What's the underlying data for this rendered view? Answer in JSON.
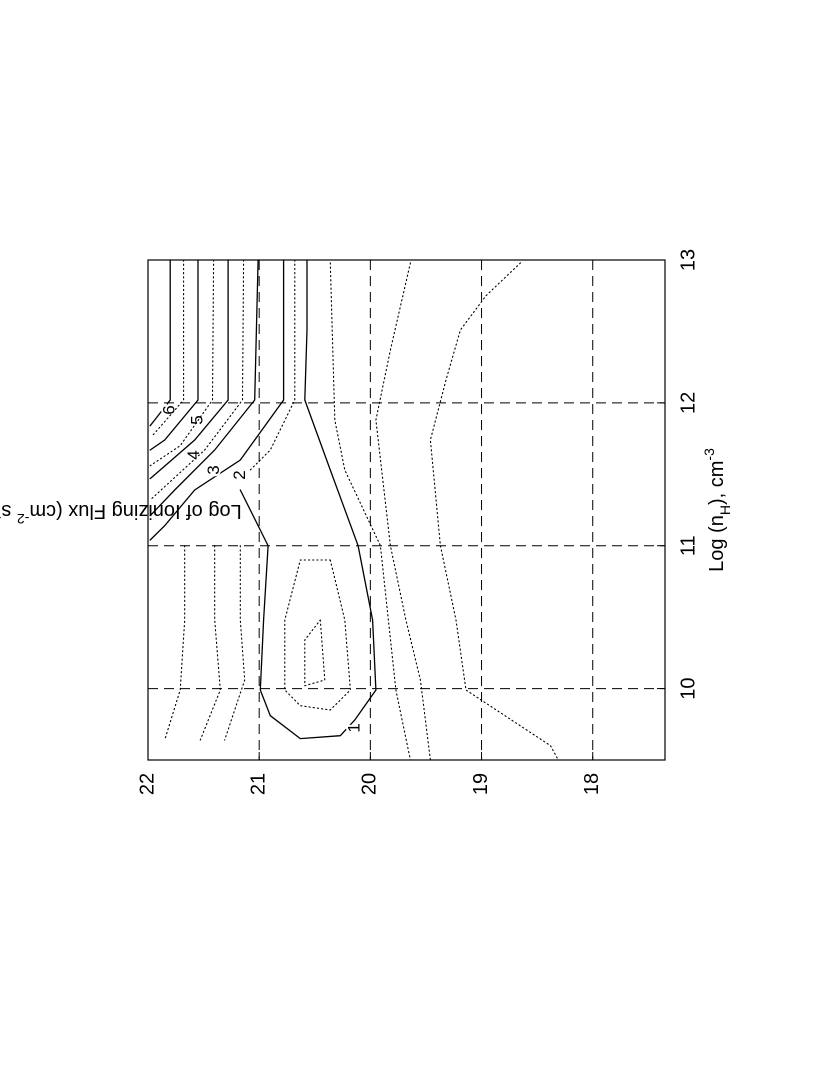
{
  "chart_data": {
    "type": "contour",
    "xlabel": [
      {
        "text": "Log (n"
      },
      {
        "text": "H",
        "sub": true
      },
      {
        "text": "), cm"
      },
      {
        "text": "-3",
        "sup": true
      }
    ],
    "ylabel": [
      {
        "text": "Log of Ionizing Flux (cm"
      },
      {
        "text": "-2",
        "sup": true
      },
      {
        "text": " s"
      },
      {
        "text": "-1",
        "sup": true
      },
      {
        "text": ")"
      }
    ],
    "xlim": [
      9.5,
      13
    ],
    "xticks": [
      10,
      11,
      12,
      13
    ],
    "ylim": [
      17.35,
      22
    ],
    "yticks": [
      18,
      19,
      20,
      21,
      22
    ],
    "grid": true,
    "grid_style": "dashed",
    "contours": [
      {
        "label": "1",
        "style": "solid",
        "x": [
          13,
          12.51,
          12.02,
          11.53,
          11,
          10.48,
          9.99,
          9.78,
          9.67,
          9.65,
          9.81,
          9.99,
          10.48,
          11,
          11.39
        ],
        "y": [
          20.57,
          20.57,
          20.59,
          20.36,
          20.11,
          19.98,
          19.95,
          20.14,
          20.27,
          20.63,
          20.9,
          20.99,
          20.96,
          20.92,
          21.17
        ]
      },
      {
        "label": "2",
        "style": "solid",
        "x": [
          13,
          12.02,
          11.6,
          11.39,
          11.14,
          11.04
        ],
        "y": [
          20.78,
          20.78,
          21.17,
          21.58,
          21.85,
          21.98
        ]
      },
      {
        "label": "3",
        "style": "solid",
        "x": [
          13,
          12.02,
          11.67,
          11.39,
          11.21
        ],
        "y": [
          21.01,
          21.04,
          21.4,
          21.76,
          21.98
        ]
      },
      {
        "label": "4",
        "style": "solid",
        "x": [
          13,
          12.02,
          11.74,
          11.53,
          11.47
        ],
        "y": [
          21.28,
          21.28,
          21.58,
          21.89,
          21.98
        ]
      },
      {
        "label": "5",
        "style": "solid",
        "x": [
          13,
          12.02,
          11.74,
          11.67
        ],
        "y": [
          21.55,
          21.55,
          21.85,
          21.98
        ]
      },
      {
        "label": "6",
        "style": "solid",
        "x": [
          13,
          12.02,
          11.88,
          11.84
        ],
        "y": [
          21.8,
          21.8,
          21.94,
          21.98
        ]
      },
      {
        "style": "dotted",
        "x": [
          12.98,
          12.75,
          12.51,
          12.16,
          11.74,
          11,
          10.48,
          9.99,
          9.6,
          9.5
        ],
        "y": [
          18.65,
          18.96,
          19.19,
          19.32,
          19.46,
          19.37,
          19.23,
          19.14,
          18.38,
          18.31
        ]
      },
      {
        "style": "dotted",
        "x": [
          12.98,
          12.37,
          11.88,
          11,
          10.48,
          10.06,
          9.5
        ],
        "y": [
          19.64,
          19.82,
          19.95,
          19.82,
          19.68,
          19.55,
          19.46
        ]
      },
      {
        "style": "dotted",
        "x": [
          12.98,
          11.88,
          11.53,
          11,
          9.99,
          9.5
        ],
        "y": [
          20.36,
          20.32,
          20.23,
          19.91,
          19.77,
          19.64
        ]
      },
      {
        "style": "dotted",
        "x": [
          10.9,
          10.48,
          9.99,
          9.85,
          9.88,
          9.99,
          10.48,
          10.9,
          10.9
        ],
        "y": [
          20.36,
          20.23,
          20.18,
          20.36,
          20.63,
          20.77,
          20.77,
          20.63,
          20.36
        ]
      },
      {
        "style": "dotted",
        "x": [
          10.48,
          10.06,
          10.02,
          10.34,
          10.48
        ],
        "y": [
          20.45,
          20.41,
          20.59,
          20.59,
          20.45
        ]
      },
      {
        "style": "dotted",
        "x": [
          11,
          10.48,
          9.99,
          9.64
        ],
        "y": [
          21.4,
          21.4,
          21.35,
          21.53
        ]
      },
      {
        "style": "dotted",
        "x": [
          11,
          10.48,
          9.99,
          9.64
        ],
        "y": [
          21.67,
          21.67,
          21.71,
          21.85
        ]
      },
      {
        "style": "dotted",
        "x": [
          11,
          10.48,
          10.06,
          9.64
        ],
        "y": [
          21.17,
          21.17,
          21.13,
          21.31
        ]
      },
      {
        "style": "dotted",
        "x": [
          13,
          12.02,
          11.67,
          11.53
        ],
        "y": [
          20.68,
          20.68,
          20.9,
          21.08
        ]
      },
      {
        "style": "dotted",
        "x": [
          13,
          12.02,
          11.67,
          11.32
        ],
        "y": [
          21.14,
          21.15,
          21.49,
          21.98
        ]
      },
      {
        "style": "dotted",
        "x": [
          13,
          12.02,
          11.7,
          11.56
        ],
        "y": [
          21.41,
          21.42,
          21.71,
          21.98
        ]
      },
      {
        "style": "dotted",
        "x": [
          13,
          12.02,
          11.77
        ],
        "y": [
          21.68,
          21.68,
          21.96
        ]
      }
    ]
  }
}
